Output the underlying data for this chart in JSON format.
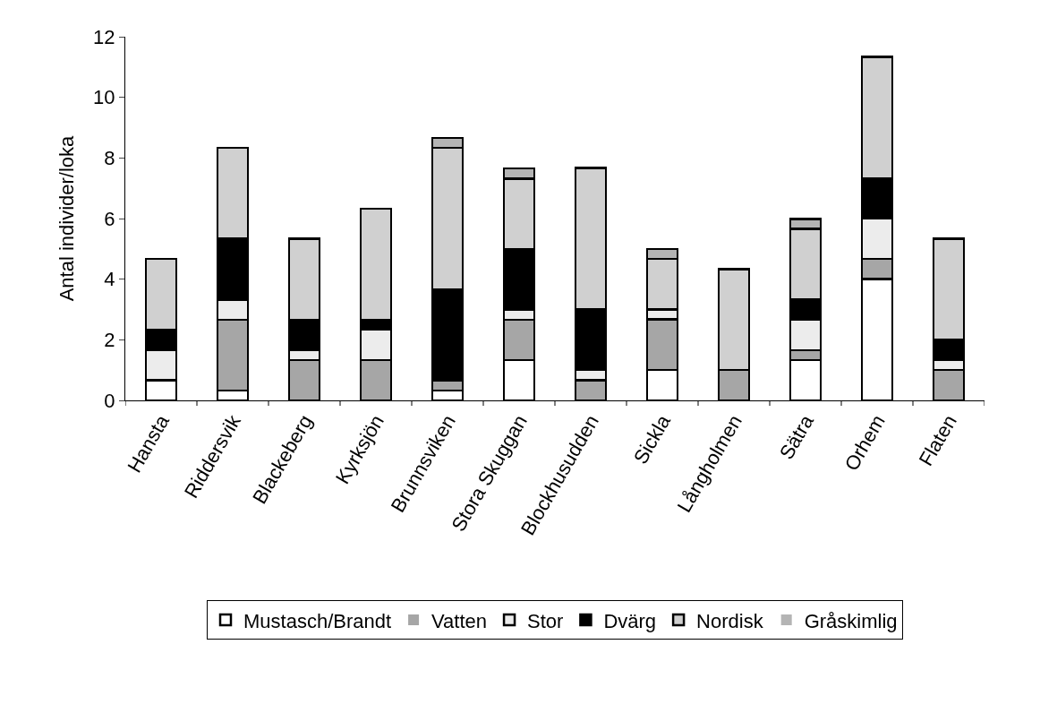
{
  "chart_data": {
    "type": "bar",
    "stacked": true,
    "ylabel": "Antal individer/loka",
    "categories": [
      "Hansta",
      "Riddersvik",
      "Blackeberg",
      "Kyrksjön",
      "Brunnsviken",
      "Stora Skuggan",
      "Blockhusudden",
      "Sickla",
      "Långholmen",
      "Sätra",
      "Orhem",
      "Flaten"
    ],
    "series": [
      {
        "name": "Mustasch/Brandt",
        "color": "#ffffff",
        "values": [
          0.67,
          0.33,
          0,
          0,
          0.33,
          1.33,
          0,
          1.0,
          0,
          1.33,
          4.0,
          0
        ]
      },
      {
        "name": "Vatten",
        "color": "#a6a6a6",
        "values": [
          0,
          2.33,
          1.33,
          1.33,
          0.33,
          1.33,
          0.67,
          1.67,
          1.0,
          0.33,
          0.67,
          1.0
        ]
      },
      {
        "name": "Stor",
        "color": "#ececec",
        "values": [
          1.0,
          0.67,
          0.33,
          1.0,
          0,
          0.33,
          0.33,
          0.33,
          0,
          1.0,
          1.33,
          0.33
        ]
      },
      {
        "name": "Dvärg",
        "color": "#000000",
        "values": [
          0.67,
          2.0,
          1.0,
          0.33,
          3.0,
          2.0,
          2.0,
          0,
          0,
          0.67,
          1.33,
          0.67
        ]
      },
      {
        "name": "Nordisk",
        "color": "#d0d0d0",
        "values": [
          2.33,
          3.0,
          2.67,
          3.67,
          4.67,
          2.33,
          4.67,
          1.67,
          3.33,
          2.33,
          4.0,
          3.33
        ]
      },
      {
        "name": "Gråskimlig",
        "color": "#b4b4b4",
        "values": [
          0,
          0,
          0,
          0,
          0.33,
          0.33,
          0,
          0.33,
          0,
          0.33,
          0,
          0
        ]
      }
    ],
    "ylim": [
      0,
      12
    ],
    "yticks": [
      0,
      2,
      4,
      6,
      8,
      10,
      12
    ],
    "grid": false,
    "legend": "bottom"
  }
}
